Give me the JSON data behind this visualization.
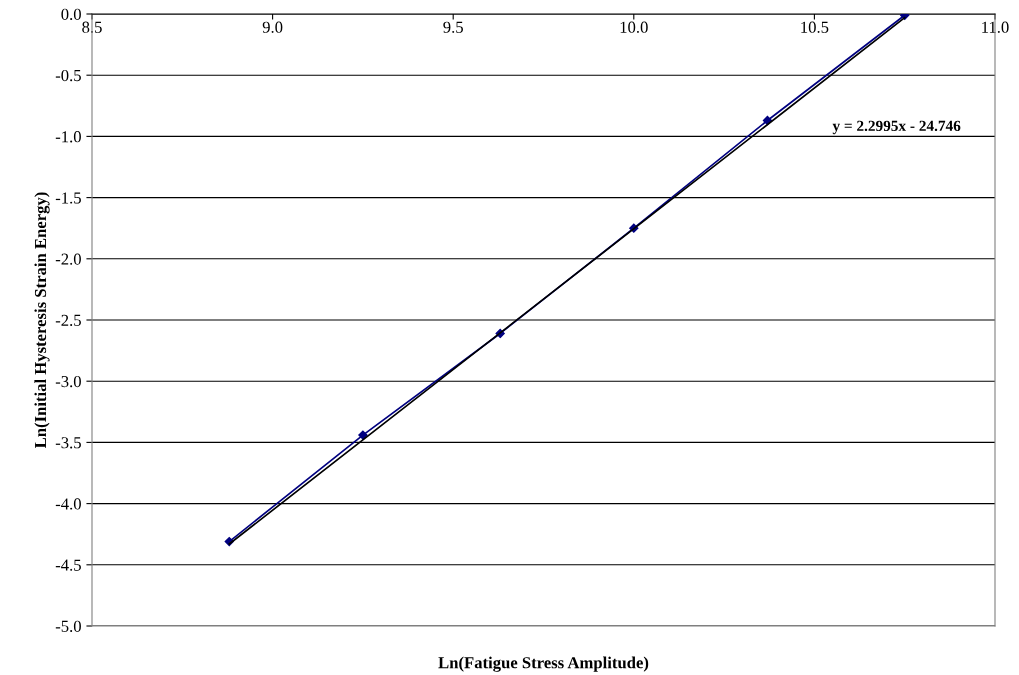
{
  "chart_data": {
    "type": "line",
    "xlabel": "Ln(Fatigue Stress Amplitude)",
    "ylabel": "Ln(Initial Hysteresis Strain Energy)",
    "series": [
      {
        "color": "#000080",
        "marker": "diamond",
        "x": [
          8.88,
          9.25,
          9.63,
          10.0,
          10.37,
          10.75
        ],
        "values": [
          -4.31,
          -3.44,
          -2.61,
          -1.75,
          -0.87,
          -0.01
        ]
      },
      {
        "color": "#000000",
        "marker": "none",
        "x": [
          8.88,
          10.75
        ],
        "values": [
          -4.33,
          -0.03
        ]
      }
    ],
    "annotations": [
      "y = 2.2995x - 24.746"
    ],
    "xlim": [
      8.5,
      11.0
    ],
    "xticks": [
      {
        "value": 8.5,
        "label": "8.5"
      },
      {
        "value": 9.0,
        "label": "9.0"
      },
      {
        "value": 9.5,
        "label": "9.5"
      },
      {
        "value": 10.0,
        "label": "10.0"
      },
      {
        "value": 10.5,
        "label": "10.5"
      },
      {
        "value": 11.0,
        "label": "11.0"
      }
    ],
    "ylim": [
      -5.0,
      0.0
    ],
    "yticks": [
      {
        "value": -5.0,
        "label": "-5.0"
      },
      -4.5,
      {
        "value": -4.0,
        "label": "-4.0"
      },
      -3.5,
      {
        "value": -3.0,
        "label": "-3.0"
      },
      -2.5,
      {
        "value": -2.0,
        "label": "-2.0"
      },
      -1.5,
      {
        "value": -1.0,
        "label": "-1.0"
      },
      -0.5,
      {
        "value": 0.0,
        "label": "0.0"
      }
    ],
    "grid": "y",
    "legend": false
  }
}
